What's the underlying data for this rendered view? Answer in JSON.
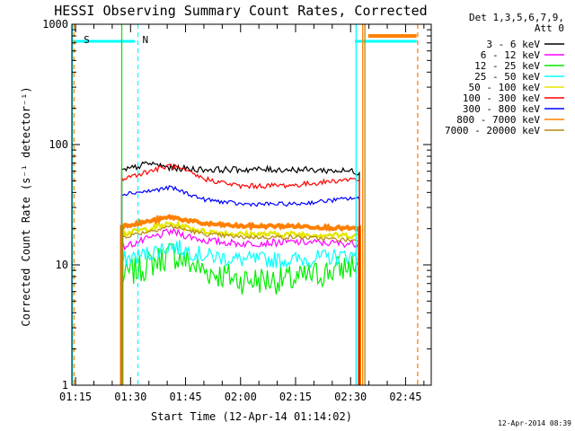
{
  "chart_data": {
    "type": "line",
    "title": "HESSI Observing Summary Count Rates, Corrected",
    "xlabel": "Start Time (12-Apr-14 01:14:02)",
    "ylabel": "Corrected Count Rate (s⁻¹ detector⁻¹)",
    "yscale": "log",
    "ylim": [
      1,
      1000
    ],
    "xlim": [
      "01:14",
      "02:52"
    ],
    "x_ticks": [
      "01:15",
      "01:30",
      "01:45",
      "02:00",
      "02:15",
      "02:30",
      "02:45"
    ],
    "y_ticks": [
      "1",
      "10",
      "100",
      "1000"
    ],
    "legend_position": "right",
    "legend_header": [
      "Det 1,3,5,6,7,9,",
      "Att 0"
    ],
    "timestamp": "12-Apr-2014 08:39",
    "region_labels": [
      {
        "label": "S",
        "time": "01:16",
        "color": "#ff8000"
      },
      {
        "label": "N",
        "time": "01:32",
        "color": "#00e5ff"
      }
    ],
    "series": [
      {
        "name": "3 - 6 keV",
        "color": "#000000",
        "values": [
          [
            1.46,
            60
          ],
          [
            1.583,
            70
          ],
          [
            1.683,
            64
          ],
          [
            1.833,
            62
          ],
          [
            2.0,
            62
          ],
          [
            2.25,
            62
          ],
          [
            2.517,
            60
          ],
          [
            2.54,
            58
          ]
        ]
      },
      {
        "name": "6 - 12 keV",
        "color": "#ff00ff",
        "values": [
          [
            1.46,
            14
          ],
          [
            1.583,
            16.5
          ],
          [
            1.683,
            19
          ],
          [
            1.833,
            16
          ],
          [
            2.0,
            15
          ],
          [
            2.25,
            15.5
          ],
          [
            2.517,
            15
          ],
          [
            2.54,
            15
          ]
        ]
      },
      {
        "name": "12 - 25 keV",
        "color": "#00ee00",
        "values": [
          [
            1.46,
            8
          ],
          [
            1.583,
            10
          ],
          [
            1.683,
            12.5
          ],
          [
            1.833,
            9
          ],
          [
            2.0,
            7.5
          ],
          [
            2.25,
            7.5
          ],
          [
            2.517,
            10
          ],
          [
            2.54,
            10
          ]
        ]
      },
      {
        "name": "25 - 50 keV",
        "color": "#00ffff",
        "values": [
          [
            1.46,
            11
          ],
          [
            1.583,
            12.5
          ],
          [
            1.683,
            14.5
          ],
          [
            1.833,
            12
          ],
          [
            2.0,
            11
          ],
          [
            2.25,
            11
          ],
          [
            2.517,
            12
          ],
          [
            2.54,
            12
          ]
        ]
      },
      {
        "name": "50 - 100 keV",
        "color": "#e6e600",
        "values": [
          [
            1.46,
            18
          ],
          [
            1.583,
            20
          ],
          [
            1.683,
            22
          ],
          [
            1.833,
            19
          ],
          [
            2.0,
            18
          ],
          [
            2.25,
            18
          ],
          [
            2.517,
            17.5
          ],
          [
            2.54,
            17.5
          ]
        ]
      },
      {
        "name": "100 - 300 keV",
        "color": "#ff0000",
        "values": [
          [
            1.46,
            52
          ],
          [
            1.583,
            60
          ],
          [
            1.683,
            67
          ],
          [
            1.833,
            52
          ],
          [
            2.0,
            45
          ],
          [
            2.25,
            46
          ],
          [
            2.517,
            52
          ],
          [
            2.54,
            50
          ]
        ]
      },
      {
        "name": "300 - 800 keV",
        "color": "#0000ff",
        "values": [
          [
            1.46,
            39
          ],
          [
            1.583,
            41
          ],
          [
            1.683,
            44
          ],
          [
            1.833,
            35
          ],
          [
            2.0,
            32
          ],
          [
            2.25,
            32
          ],
          [
            2.517,
            36
          ],
          [
            2.54,
            35
          ]
        ]
      },
      {
        "name": "800 - 7000 keV",
        "color": "#ff8000",
        "values": [
          [
            1.46,
            21
          ],
          [
            1.583,
            23
          ],
          [
            1.683,
            25
          ],
          [
            1.833,
            22
          ],
          [
            2.0,
            21
          ],
          [
            2.25,
            21
          ],
          [
            2.517,
            20
          ],
          [
            2.54,
            20
          ]
        ]
      },
      {
        "name": "7000 - 20000 keV",
        "color": "#b8860b",
        "values": [
          [
            1.46,
            17
          ],
          [
            1.583,
            19
          ],
          [
            1.683,
            21
          ],
          [
            1.833,
            18
          ],
          [
            2.0,
            17
          ],
          [
            2.25,
            17
          ],
          [
            2.517,
            16
          ],
          [
            2.54,
            16
          ]
        ]
      }
    ]
  }
}
